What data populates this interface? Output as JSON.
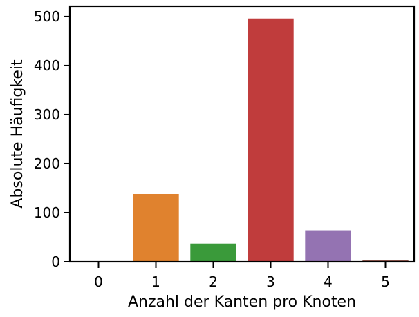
{
  "chart_data": {
    "type": "bar",
    "title": "",
    "xlabel": "Anzahl der Kanten pro Knoten",
    "ylabel": "Absolute Häufigkeit",
    "categories": [
      "0",
      "1",
      "2",
      "3",
      "4",
      "5"
    ],
    "values": [
      0,
      138,
      37,
      496,
      64,
      4
    ],
    "colors": [
      "#1f77b4",
      "#e0822e",
      "#3a9a3a",
      "#c03c3c",
      "#9473b2",
      "#8c564b"
    ],
    "ylim": [
      0,
      521
    ],
    "yticks": [
      0,
      100,
      200,
      300,
      400,
      500
    ],
    "grid": false,
    "legend": "none"
  }
}
